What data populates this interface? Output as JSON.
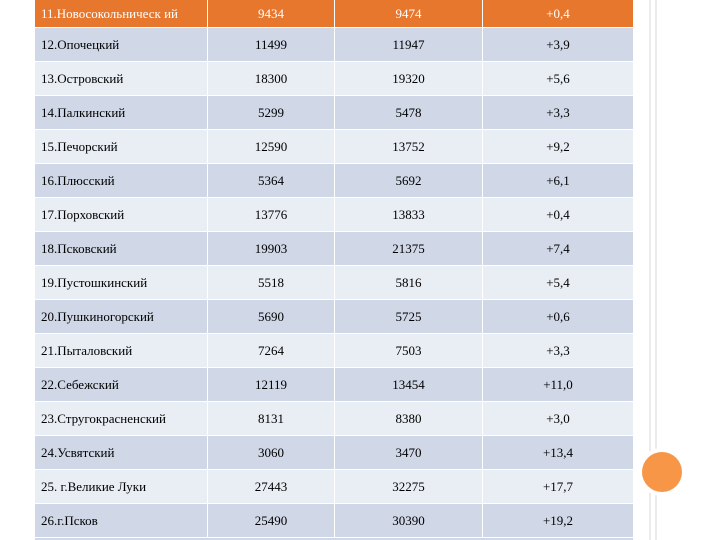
{
  "table": {
    "rows": [
      [
        "11.Новосокольническ ий",
        "9434",
        "9474",
        "+0,4"
      ],
      [
        "12.Опочецкий",
        "11499",
        "11947",
        "+3,9"
      ],
      [
        "13.Островский",
        "18300",
        "19320",
        "+5,6"
      ],
      [
        "14.Палкинский",
        "5299",
        "5478",
        "+3,3"
      ],
      [
        "15.Печорский",
        "12590",
        "13752",
        "+9,2"
      ],
      [
        "16.Плюсский",
        "5364",
        "5692",
        "+6,1"
      ],
      [
        "17.Порховский",
        "13776",
        "13833",
        "+0,4"
      ],
      [
        "18.Псковский",
        "19903",
        "21375",
        "+7,4"
      ],
      [
        "19.Пустошкинский",
        "5518",
        "5816",
        "+5,4"
      ],
      [
        "20.Пушкиногорский",
        "5690",
        "5725",
        "+0,6"
      ],
      [
        "21.Пыталовский",
        "7264",
        "7503",
        "+3,3"
      ],
      [
        "22.Себежский",
        "12119",
        "13454",
        "+11,0"
      ],
      [
        "23.Стругокрасненский",
        "8131",
        "8380",
        "+3,0"
      ],
      [
        "24.Усвятский",
        "3060",
        "3470",
        "+13,4"
      ],
      [
        "25. г.Великие Луки",
        "27443",
        "32275",
        "+17,7"
      ],
      [
        "26.г.Псков",
        "25490",
        "30390",
        "+19,2"
      ]
    ]
  }
}
